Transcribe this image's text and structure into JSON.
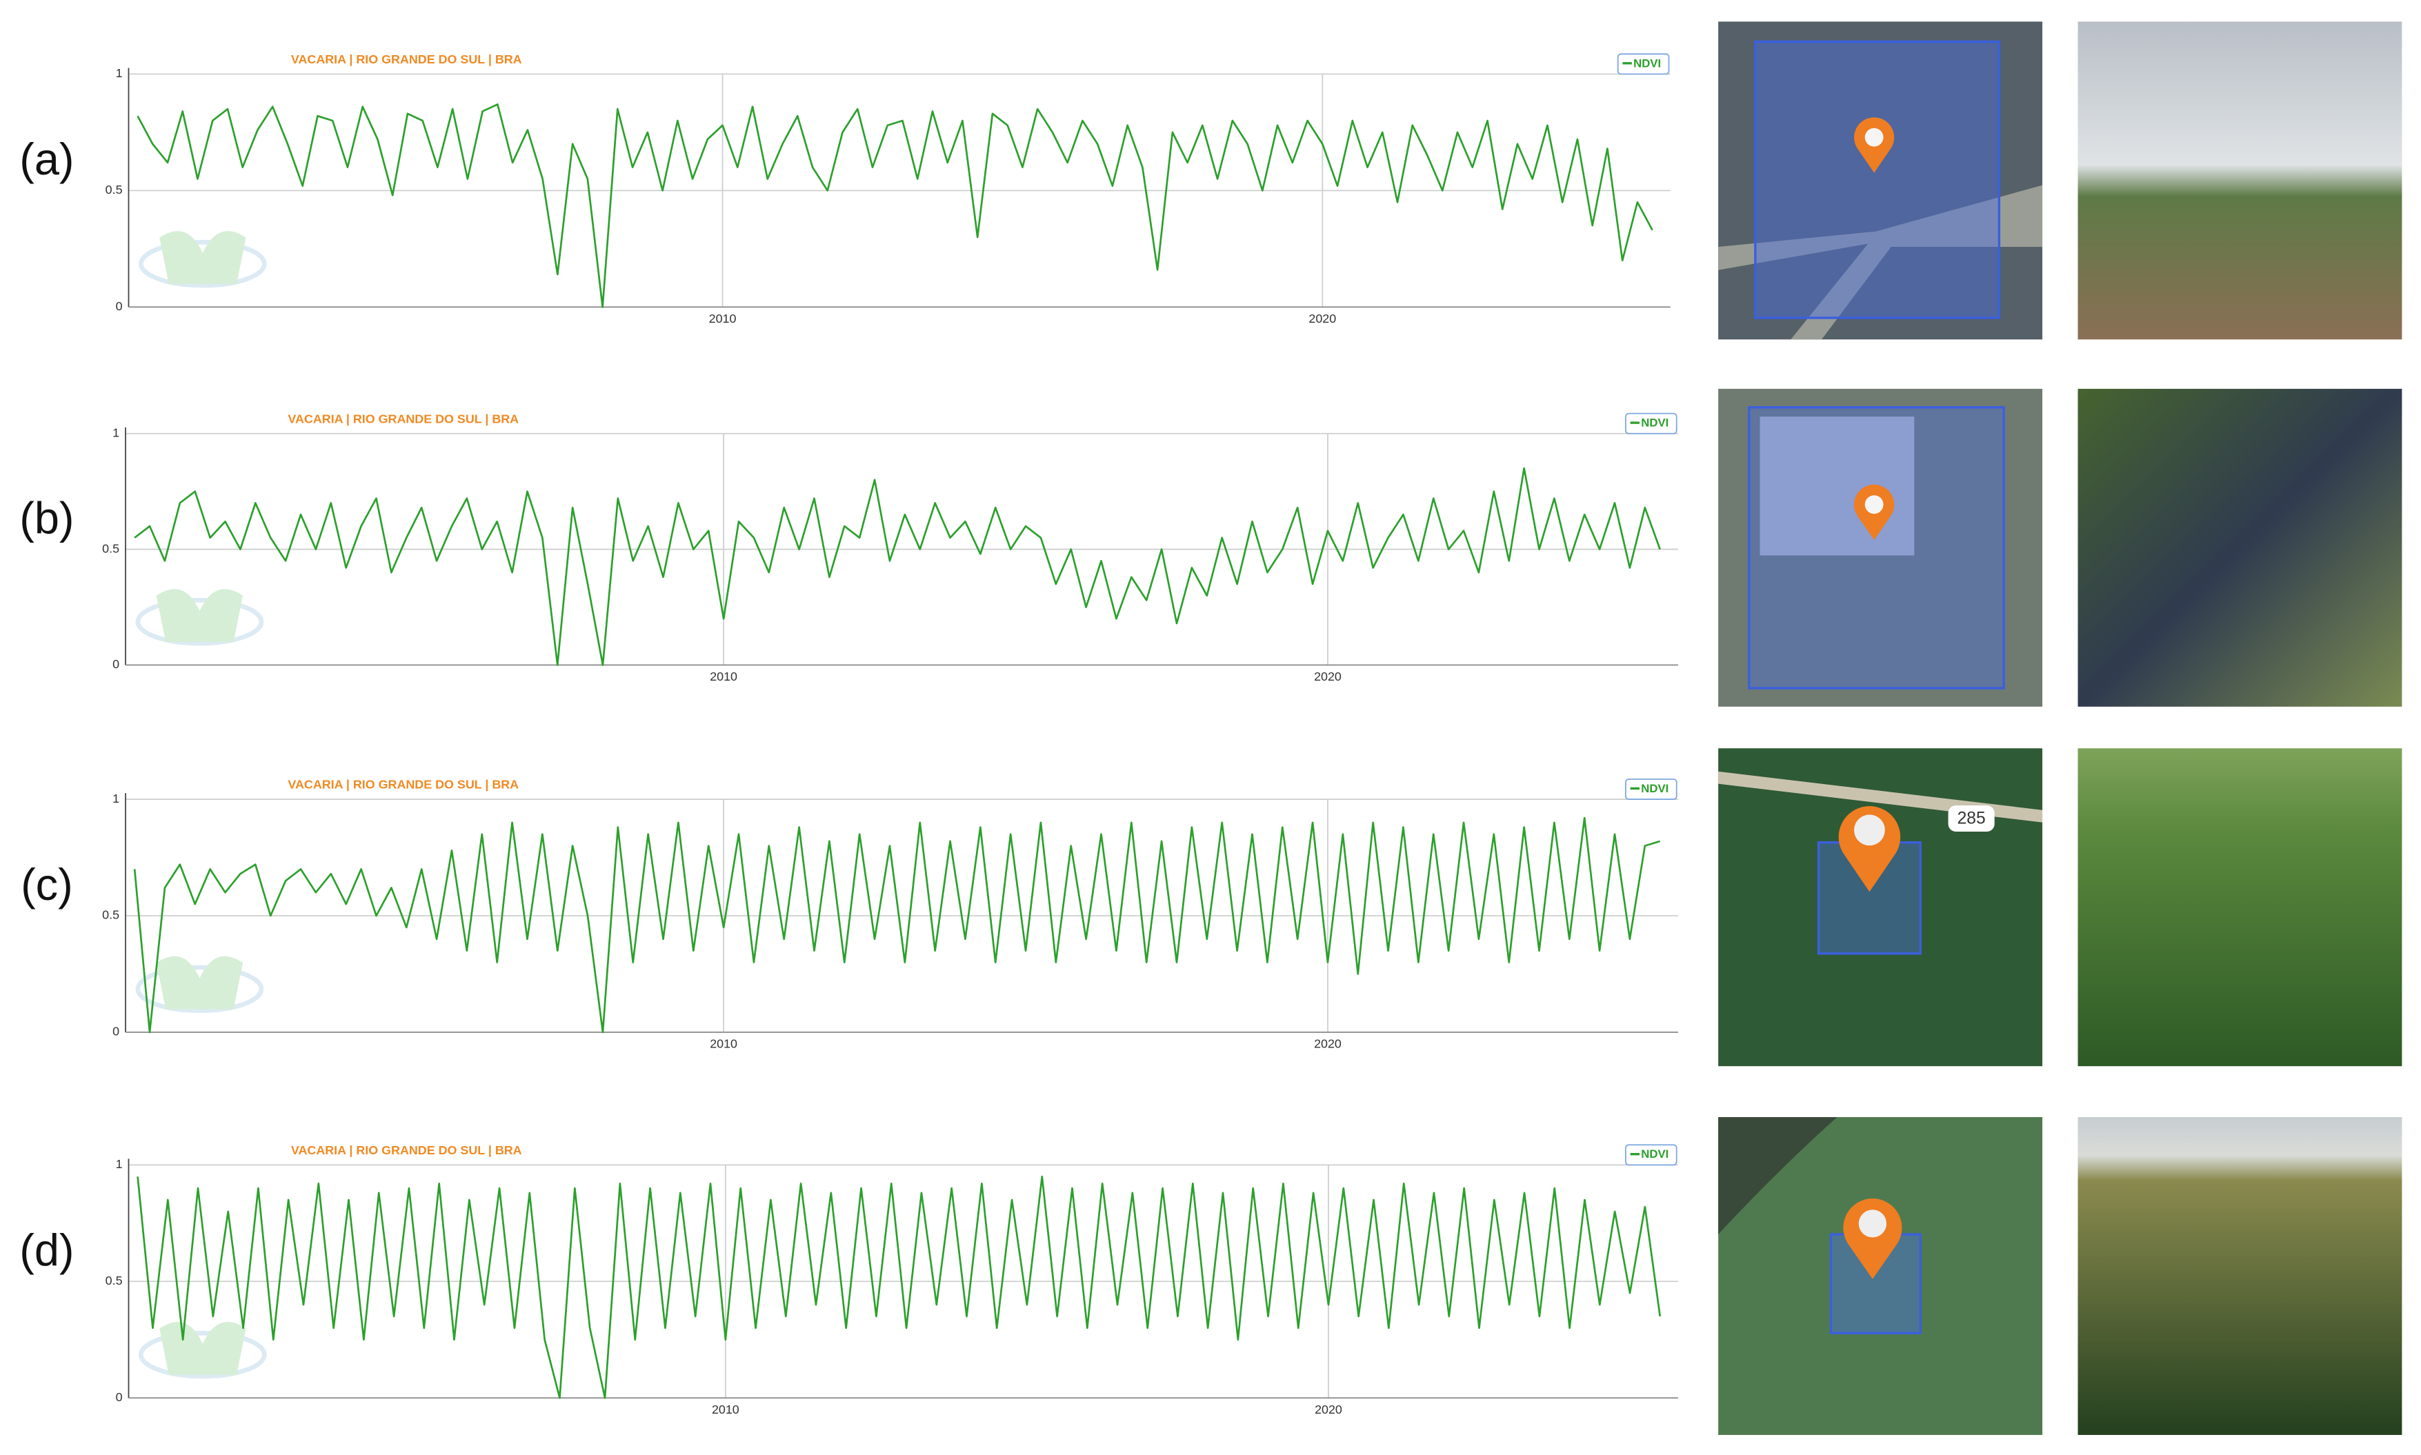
{
  "chart_data": [
    {
      "type": "line",
      "title": "VACARIA | RIO GRANDE DO SUL | BRA",
      "legend": "upper right",
      "grid": true,
      "xlim": [
        2000.1,
        2025.8
      ],
      "ylim": [
        0,
        1
      ],
      "xticks": [
        2010,
        2020
      ],
      "yticks": [
        0,
        0.5,
        1
      ],
      "x": [
        2000.25,
        2000.5,
        2000.75,
        2001,
        2001.25,
        2001.5,
        2001.75,
        2002,
        2002.25,
        2002.5,
        2002.75,
        2003,
        2003.25,
        2003.5,
        2003.75,
        2004,
        2004.25,
        2004.5,
        2004.75,
        2005,
        2005.25,
        2005.5,
        2005.75,
        2006,
        2006.25,
        2006.5,
        2006.75,
        2007,
        2007.25,
        2007.5,
        2007.75,
        2008,
        2008.25,
        2008.5,
        2008.75,
        2009,
        2009.25,
        2009.5,
        2009.75,
        2010,
        2010.25,
        2010.5,
        2010.75,
        2011,
        2011.25,
        2011.5,
        2011.75,
        2012,
        2012.25,
        2012.5,
        2012.75,
        2013,
        2013.25,
        2013.5,
        2013.75,
        2014,
        2014.25,
        2014.5,
        2014.75,
        2015,
        2015.25,
        2015.5,
        2015.75,
        2016,
        2016.25,
        2016.5,
        2016.75,
        2017,
        2017.25,
        2017.5,
        2017.75,
        2018,
        2018.25,
        2018.5,
        2018.75,
        2019,
        2019.25,
        2019.5,
        2019.75,
        2020,
        2020.25,
        2020.5,
        2020.75,
        2021,
        2021.25,
        2021.5,
        2021.75,
        2022,
        2022.25,
        2022.5,
        2022.75,
        2023,
        2023.25,
        2023.5,
        2023.75,
        2024,
        2024.25,
        2024.5,
        2024.75,
        2025,
        2025.25,
        2025.5
      ],
      "series": [
        {
          "name": "NDVI",
          "color": "#2ca02c",
          "values": [
            0.82,
            0.7,
            0.62,
            0.84,
            0.55,
            0.8,
            0.85,
            0.6,
            0.76,
            0.86,
            0.7,
            0.52,
            0.82,
            0.8,
            0.6,
            0.86,
            0.72,
            0.48,
            0.83,
            0.8,
            0.6,
            0.85,
            0.55,
            0.84,
            0.87,
            0.62,
            0.76,
            0.55,
            0.14,
            0.7,
            0.55,
            0,
            0.85,
            0.6,
            0.75,
            0.5,
            0.8,
            0.55,
            0.72,
            0.78,
            0.6,
            0.86,
            0.55,
            0.7,
            0.82,
            0.6,
            0.5,
            0.75,
            0.85,
            0.6,
            0.78,
            0.8,
            0.55,
            0.84,
            0.62,
            0.8,
            0.3,
            0.83,
            0.78,
            0.6,
            0.85,
            0.75,
            0.62,
            0.8,
            0.7,
            0.52,
            0.78,
            0.6,
            0.16,
            0.75,
            0.62,
            0.78,
            0.55,
            0.8,
            0.7,
            0.5,
            0.78,
            0.62,
            0.8,
            0.7,
            0.52,
            0.8,
            0.6,
            0.75,
            0.45,
            0.78,
            0.65,
            0.5,
            0.75,
            0.6,
            0.8,
            0.42,
            0.7,
            0.55,
            0.78,
            0.45,
            0.72,
            0.35,
            0.68,
            0.2,
            0.45,
            0.33
          ]
        }
      ]
    },
    {
      "type": "line",
      "title": "VACARIA | RIO GRANDE DO SUL | BRA",
      "legend": "upper right",
      "grid": true,
      "xlim": [
        2000.1,
        2025.8
      ],
      "ylim": [
        0,
        1
      ],
      "xticks": [
        2010,
        2020
      ],
      "yticks": [
        0,
        0.5,
        1
      ],
      "x": [
        2000.25,
        2000.5,
        2000.75,
        2001,
        2001.25,
        2001.5,
        2001.75,
        2002,
        2002.25,
        2002.5,
        2002.75,
        2003,
        2003.25,
        2003.5,
        2003.75,
        2004,
        2004.25,
        2004.5,
        2004.75,
        2005,
        2005.25,
        2005.5,
        2005.75,
        2006,
        2006.25,
        2006.5,
        2006.75,
        2007,
        2007.25,
        2007.5,
        2007.75,
        2008,
        2008.25,
        2008.5,
        2008.75,
        2009,
        2009.25,
        2009.5,
        2009.75,
        2010,
        2010.25,
        2010.5,
        2010.75,
        2011,
        2011.25,
        2011.5,
        2011.75,
        2012,
        2012.25,
        2012.5,
        2012.75,
        2013,
        2013.25,
        2013.5,
        2013.75,
        2014,
        2014.25,
        2014.5,
        2014.75,
        2015,
        2015.25,
        2015.5,
        2015.75,
        2016,
        2016.25,
        2016.5,
        2016.75,
        2017,
        2017.25,
        2017.5,
        2017.75,
        2018,
        2018.25,
        2018.5,
        2018.75,
        2019,
        2019.25,
        2019.5,
        2019.75,
        2020,
        2020.25,
        2020.5,
        2020.75,
        2021,
        2021.25,
        2021.5,
        2021.75,
        2022,
        2022.25,
        2022.5,
        2022.75,
        2023,
        2023.25,
        2023.5,
        2023.75,
        2024,
        2024.25,
        2024.5,
        2024.75,
        2025,
        2025.25,
        2025.5
      ],
      "series": [
        {
          "name": "NDVI",
          "color": "#2ca02c",
          "values": [
            0.55,
            0.6,
            0.45,
            0.7,
            0.75,
            0.55,
            0.62,
            0.5,
            0.7,
            0.55,
            0.45,
            0.65,
            0.5,
            0.7,
            0.42,
            0.6,
            0.72,
            0.4,
            0.55,
            0.68,
            0.45,
            0.6,
            0.72,
            0.5,
            0.62,
            0.4,
            0.75,
            0.55,
            0,
            0.68,
            0.35,
            0,
            0.72,
            0.45,
            0.6,
            0.38,
            0.7,
            0.5,
            0.58,
            0.2,
            0.62,
            0.55,
            0.4,
            0.68,
            0.5,
            0.72,
            0.38,
            0.6,
            0.55,
            0.8,
            0.45,
            0.65,
            0.5,
            0.7,
            0.55,
            0.62,
            0.48,
            0.68,
            0.5,
            0.6,
            0.55,
            0.35,
            0.5,
            0.25,
            0.45,
            0.2,
            0.38,
            0.28,
            0.5,
            0.18,
            0.42,
            0.3,
            0.55,
            0.35,
            0.62,
            0.4,
            0.5,
            0.68,
            0.35,
            0.58,
            0.45,
            0.7,
            0.42,
            0.55,
            0.65,
            0.45,
            0.72,
            0.5,
            0.58,
            0.4,
            0.75,
            0.45,
            0.85,
            0.5,
            0.72,
            0.45,
            0.65,
            0.5,
            0.7,
            0.42,
            0.68,
            0.5
          ]
        }
      ]
    },
    {
      "type": "line",
      "title": "VACARIA | RIO GRANDE DO SUL | BRA",
      "legend": "upper right",
      "grid": true,
      "xlim": [
        2000.1,
        2025.8
      ],
      "ylim": [
        0,
        1
      ],
      "xticks": [
        2010,
        2020
      ],
      "yticks": [
        0,
        0.5,
        1
      ],
      "x": [
        2000.25,
        2000.5,
        2000.75,
        2001,
        2001.25,
        2001.5,
        2001.75,
        2002,
        2002.25,
        2002.5,
        2002.75,
        2003,
        2003.25,
        2003.5,
        2003.75,
        2004,
        2004.25,
        2004.5,
        2004.75,
        2005,
        2005.25,
        2005.5,
        2005.75,
        2006,
        2006.25,
        2006.5,
        2006.75,
        2007,
        2007.25,
        2007.5,
        2007.75,
        2008,
        2008.25,
        2008.5,
        2008.75,
        2009,
        2009.25,
        2009.5,
        2009.75,
        2010,
        2010.25,
        2010.5,
        2010.75,
        2011,
        2011.25,
        2011.5,
        2011.75,
        2012,
        2012.25,
        2012.5,
        2012.75,
        2013,
        2013.25,
        2013.5,
        2013.75,
        2014,
        2014.25,
        2014.5,
        2014.75,
        2015,
        2015.25,
        2015.5,
        2015.75,
        2016,
        2016.25,
        2016.5,
        2016.75,
        2017,
        2017.25,
        2017.5,
        2017.75,
        2018,
        2018.25,
        2018.5,
        2018.75,
        2019,
        2019.25,
        2019.5,
        2019.75,
        2020,
        2020.25,
        2020.5,
        2020.75,
        2021,
        2021.25,
        2021.5,
        2021.75,
        2022,
        2022.25,
        2022.5,
        2022.75,
        2023,
        2023.25,
        2023.5,
        2023.75,
        2024,
        2024.25,
        2024.5,
        2024.75,
        2025,
        2025.25,
        2025.5
      ],
      "series": [
        {
          "name": "NDVI",
          "color": "#2ca02c",
          "values": [
            0.7,
            0,
            0.62,
            0.72,
            0.55,
            0.7,
            0.6,
            0.68,
            0.72,
            0.5,
            0.65,
            0.7,
            0.6,
            0.68,
            0.55,
            0.7,
            0.5,
            0.62,
            0.45,
            0.7,
            0.4,
            0.78,
            0.35,
            0.85,
            0.3,
            0.9,
            0.4,
            0.85,
            0.35,
            0.8,
            0.5,
            0,
            0.88,
            0.3,
            0.85,
            0.4,
            0.9,
            0.35,
            0.8,
            0.45,
            0.85,
            0.3,
            0.8,
            0.4,
            0.88,
            0.35,
            0.82,
            0.3,
            0.85,
            0.4,
            0.8,
            0.3,
            0.9,
            0.35,
            0.82,
            0.4,
            0.88,
            0.3,
            0.85,
            0.35,
            0.9,
            0.3,
            0.8,
            0.4,
            0.85,
            0.35,
            0.9,
            0.3,
            0.82,
            0.3,
            0.88,
            0.4,
            0.9,
            0.35,
            0.85,
            0.3,
            0.88,
            0.4,
            0.9,
            0.3,
            0.85,
            0.25,
            0.9,
            0.35,
            0.88,
            0.3,
            0.85,
            0.35,
            0.9,
            0.4,
            0.85,
            0.3,
            0.88,
            0.35,
            0.9,
            0.4,
            0.92,
            0.35,
            0.85,
            0.4,
            0.8,
            0.82
          ]
        }
      ]
    },
    {
      "type": "line",
      "title": "VACARIA | RIO GRANDE DO SUL | BRA",
      "legend": "upper right",
      "grid": true,
      "xlim": [
        2000.1,
        2025.8
      ],
      "ylim": [
        0,
        1
      ],
      "xticks": [
        2010,
        2020
      ],
      "yticks": [
        0,
        0.5,
        1
      ],
      "x": [
        2000.25,
        2000.5,
        2000.75,
        2001,
        2001.25,
        2001.5,
        2001.75,
        2002,
        2002.25,
        2002.5,
        2002.75,
        2003,
        2003.25,
        2003.5,
        2003.75,
        2004,
        2004.25,
        2004.5,
        2004.75,
        2005,
        2005.25,
        2005.5,
        2005.75,
        2006,
        2006.25,
        2006.5,
        2006.75,
        2007,
        2007.25,
        2007.5,
        2007.75,
        2008,
        2008.25,
        2008.5,
        2008.75,
        2009,
        2009.25,
        2009.5,
        2009.75,
        2010,
        2010.25,
        2010.5,
        2010.75,
        2011,
        2011.25,
        2011.5,
        2011.75,
        2012,
        2012.25,
        2012.5,
        2012.75,
        2013,
        2013.25,
        2013.5,
        2013.75,
        2014,
        2014.25,
        2014.5,
        2014.75,
        2015,
        2015.25,
        2015.5,
        2015.75,
        2016,
        2016.25,
        2016.5,
        2016.75,
        2017,
        2017.25,
        2017.5,
        2017.75,
        2018,
        2018.25,
        2018.5,
        2018.75,
        2019,
        2019.25,
        2019.5,
        2019.75,
        2020,
        2020.25,
        2020.5,
        2020.75,
        2021,
        2021.25,
        2021.5,
        2021.75,
        2022,
        2022.25,
        2022.5,
        2022.75,
        2023,
        2023.25,
        2023.5,
        2023.75,
        2024,
        2024.25,
        2024.5,
        2024.75,
        2025,
        2025.25,
        2025.5
      ],
      "series": [
        {
          "name": "NDVI",
          "color": "#2ca02c",
          "values": [
            0.95,
            0.3,
            0.85,
            0.25,
            0.9,
            0.35,
            0.8,
            0.3,
            0.9,
            0.25,
            0.85,
            0.4,
            0.92,
            0.3,
            0.85,
            0.25,
            0.88,
            0.35,
            0.9,
            0.3,
            0.92,
            0.25,
            0.85,
            0.4,
            0.9,
            0.3,
            0.88,
            0.25,
            0,
            0.9,
            0.3,
            0,
            0.92,
            0.25,
            0.9,
            0.3,
            0.88,
            0.35,
            0.92,
            0.25,
            0.9,
            0.3,
            0.85,
            0.35,
            0.92,
            0.4,
            0.88,
            0.3,
            0.9,
            0.35,
            0.92,
            0.3,
            0.88,
            0.4,
            0.9,
            0.35,
            0.92,
            0.3,
            0.85,
            0.4,
            0.95,
            0.35,
            0.9,
            0.3,
            0.92,
            0.4,
            0.88,
            0.3,
            0.9,
            0.35,
            0.92,
            0.3,
            0.88,
            0.25,
            0.9,
            0.35,
            0.92,
            0.3,
            0.88,
            0.4,
            0.9,
            0.35,
            0.85,
            0.3,
            0.92,
            0.4,
            0.88,
            0.35,
            0.9,
            0.3,
            0.85,
            0.4,
            0.88,
            0.35,
            0.9,
            0.3,
            0.85,
            0.4,
            0.8,
            0.45,
            0.82,
            0.35
          ]
        }
      ]
    }
  ],
  "panels": [
    {
      "label": "(a)"
    },
    {
      "label": "(b)"
    },
    {
      "label": "(c)",
      "map_text": "285"
    },
    {
      "label": "(d)"
    }
  ]
}
